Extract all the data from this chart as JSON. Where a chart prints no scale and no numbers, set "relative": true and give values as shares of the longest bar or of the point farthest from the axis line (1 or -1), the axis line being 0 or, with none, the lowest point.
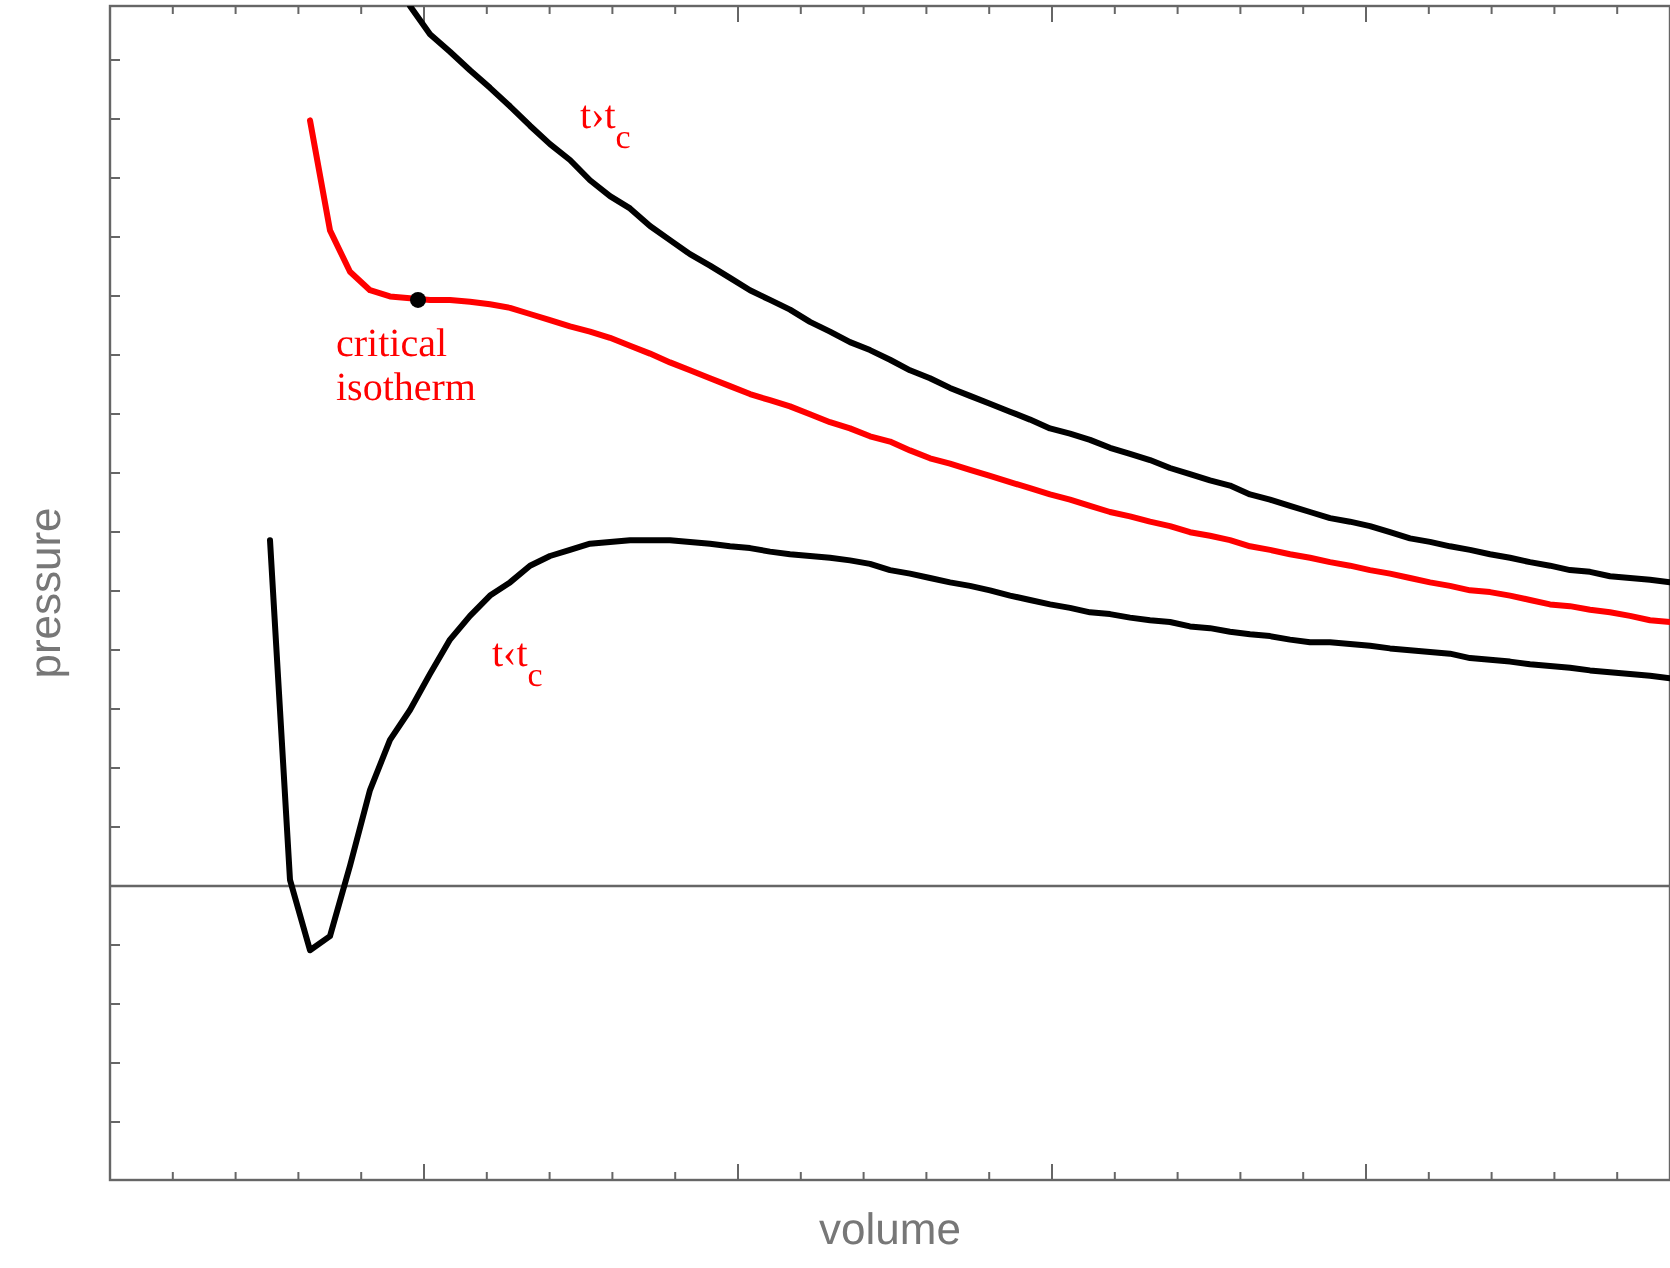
{
  "chart_data": {
    "type": "line",
    "relative": true,
    "ylabel": "pressure",
    "categories": [
      null,
      null,
      null,
      null,
      null,
      null,
      null,
      null,
      null,
      null,
      null,
      null,
      null,
      null,
      null,
      null,
      null,
      null,
      null,
      null,
      null,
      null,
      null,
      null,
      null,
      null,
      null,
      null,
      null,
      null,
      null,
      null,
      null,
      null,
      null,
      null,
      null,
      null,
      null,
      null,
      null,
      null,
      null,
      null,
      null,
      null,
      null,
      null,
      null,
      null,
      null,
      null,
      null,
      null,
      null,
      null,
      null,
      null,
      null,
      null,
      null,
      null,
      null,
      null,
      null,
      null,
      null,
      null,
      null,
      null,
      null,
      null,
      null,
      null,
      null,
      null,
      null,
      null,
      null
    ],
    "series": [
      {
        "color": "#000000",
        "values": [
          null,
          null,
          null,
          null,
          null,
          null,
          null,
          null,
          null,
          null,
          null,
          null,
          null,
          null,
          null,
          1,
          0.968,
          0.948,
          0.927,
          0.907,
          0.886,
          0.864,
          0.843,
          0.825,
          0.802,
          0.784,
          0.77,
          0.75,
          0.734,
          0.718,
          0.705,
          0.691,
          0.677,
          0.666,
          0.655,
          0.641,
          0.63,
          0.618,
          0.609,
          0.598,
          0.586,
          0.577,
          0.566,
          0.557,
          0.548,
          0.539,
          0.53,
          0.52,
          0.514,
          0.507,
          0.498,
          0.491,
          0.484,
          0.475,
          0.468,
          0.461,
          0.455,
          0.445,
          0.439,
          0.432,
          0.425,
          0.418,
          0.414,
          0.409,
          0.402,
          0.395,
          0.391,
          0.386,
          0.382,
          0.377,
          0.373,
          0.368,
          0.364,
          0.359,
          0.357,
          0.352,
          0.35,
          0.348,
          0.345
        ]
      },
      {
        "color": "#ff0000",
        "values": [
          null,
          null,
          null,
          null,
          null,
          null,
          null,
          null,
          null,
          null,
          0.87,
          0.745,
          0.698,
          0.677,
          0.67,
          0.668,
          0.666,
          0.666,
          0.664,
          0.661,
          0.657,
          0.65,
          0.643,
          0.636,
          0.63,
          0.623,
          0.614,
          0.605,
          0.595,
          0.586,
          0.577,
          0.568,
          0.559,
          0.552,
          0.545,
          0.536,
          0.527,
          0.52,
          0.511,
          0.505,
          0.495,
          0.486,
          0.48,
          0.473,
          0.466,
          0.459,
          0.452,
          0.445,
          0.439,
          0.432,
          0.425,
          0.42,
          0.414,
          0.409,
          0.402,
          0.398,
          0.393,
          0.386,
          0.382,
          0.377,
          0.373,
          0.368,
          0.364,
          0.359,
          0.355,
          0.35,
          0.345,
          0.341,
          0.336,
          0.334,
          0.33,
          0.325,
          0.32,
          0.318,
          0.314,
          0.311,
          0.307,
          0.302,
          0.3
        ]
      },
      {
        "color": "#000000",
        "values": [
          null,
          null,
          null,
          null,
          null,
          null,
          null,
          null,
          0.393,
          0.007,
          -0.073,
          -0.057,
          0.023,
          0.109,
          0.166,
          0.2,
          0.241,
          0.28,
          0.307,
          0.33,
          0.345,
          0.364,
          0.375,
          0.382,
          0.389,
          0.391,
          0.393,
          0.393,
          0.393,
          0.391,
          0.389,
          0.386,
          0.384,
          0.38,
          0.377,
          0.375,
          0.373,
          0.37,
          0.366,
          0.359,
          0.355,
          0.35,
          0.345,
          0.341,
          0.336,
          0.33,
          0.325,
          0.32,
          0.316,
          0.311,
          0.309,
          0.305,
          0.302,
          0.3,
          0.295,
          0.293,
          0.289,
          0.286,
          0.284,
          0.28,
          0.277,
          0.277,
          0.275,
          0.273,
          0.27,
          0.268,
          0.266,
          0.264,
          0.259,
          0.257,
          0.255,
          0.252,
          0.25,
          0.248,
          0.245,
          0.243,
          0.241,
          0.239,
          0.236
        ]
      }
    ],
    "annotations": [
      "t›t$_{c}$",
      "critical isotherm",
      "t‹t$_{c}$",
      "volume"
    ]
  }
}
